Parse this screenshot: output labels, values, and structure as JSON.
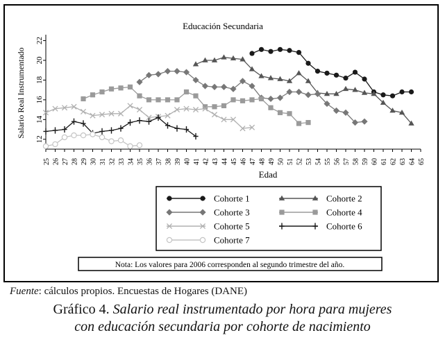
{
  "chart_data": {
    "type": "line",
    "title": "Educación Secundaria",
    "xlabel": "Edad",
    "ylabel": "Salario Real Instrumentado",
    "xlim": [
      25,
      65
    ],
    "ylim": [
      11,
      22.6
    ],
    "yticks": [
      12,
      14,
      16,
      18,
      20,
      22
    ],
    "x": [
      25,
      26,
      27,
      28,
      29,
      30,
      31,
      32,
      33,
      34,
      35,
      36,
      37,
      38,
      39,
      40,
      41,
      42,
      43,
      44,
      45,
      46,
      47,
      48,
      49,
      50,
      51,
      52,
      53,
      54,
      55,
      56,
      57,
      58,
      59,
      60,
      61,
      62,
      63,
      64,
      65
    ],
    "grid": false,
    "legend_position": "below plot, boxed",
    "series": [
      {
        "name": "Cohorte 1",
        "color": "#1a1a1a",
        "marker": "circle-filled",
        "x": [
          47,
          48,
          49,
          50,
          51,
          52,
          53,
          54,
          55,
          56,
          57,
          58,
          59,
          60,
          61,
          62,
          63,
          64
        ],
        "values": [
          20.7,
          21.1,
          20.9,
          21.1,
          21.0,
          20.8,
          19.7,
          18.9,
          18.7,
          18.5,
          18.2,
          18.8,
          18.1,
          16.8,
          16.5,
          16.4,
          16.8,
          16.8
        ]
      },
      {
        "name": "Cohorte 2",
        "color": "#555555",
        "marker": "triangle",
        "x": [
          41,
          42,
          43,
          44,
          45,
          46,
          47,
          48,
          49,
          50,
          51,
          52,
          53,
          54,
          55,
          56,
          57,
          58,
          59,
          60,
          61,
          62,
          63,
          64
        ],
        "values": [
          19.6,
          20.0,
          20.0,
          20.3,
          20.2,
          20.1,
          19.1,
          18.4,
          18.2,
          18.1,
          17.9,
          18.7,
          17.9,
          16.7,
          16.6,
          16.6,
          17.1,
          17.0,
          16.7,
          16.6,
          15.7,
          14.9,
          14.7,
          13.6
        ]
      },
      {
        "name": "Cohorte 3",
        "color": "#777777",
        "marker": "diamond",
        "x": [
          35,
          36,
          37,
          38,
          39,
          40,
          41,
          42,
          43,
          44,
          45,
          46,
          47,
          48,
          49,
          50,
          51,
          52,
          53,
          54,
          55,
          56,
          57,
          58,
          59
        ],
        "values": [
          17.8,
          18.5,
          18.6,
          18.9,
          18.9,
          18.8,
          18.0,
          17.4,
          17.3,
          17.3,
          17.1,
          17.9,
          17.4,
          16.2,
          16.1,
          16.2,
          16.8,
          16.8,
          16.5,
          16.6,
          15.6,
          14.9,
          14.7,
          13.7,
          13.8
        ]
      },
      {
        "name": "Cohorte 4",
        "color": "#9a9a9a",
        "marker": "square",
        "x": [
          29,
          30,
          31,
          32,
          33,
          34,
          35,
          36,
          37,
          38,
          39,
          40,
          41,
          42,
          43,
          44,
          45,
          46,
          47,
          48,
          49,
          50,
          51,
          52,
          53
        ],
        "values": [
          16.1,
          16.5,
          16.8,
          17.1,
          17.2,
          17.3,
          16.4,
          16.0,
          16.0,
          16.0,
          16.0,
          16.8,
          16.4,
          15.3,
          15.3,
          15.4,
          16.0,
          15.9,
          16.0,
          16.1,
          15.2,
          14.7,
          14.6,
          13.6,
          13.7
        ]
      },
      {
        "name": "Cohorte 5",
        "color": "#b0b0b0",
        "marker": "cross",
        "x": [
          25,
          26,
          27,
          28,
          29,
          30,
          31,
          32,
          33,
          34,
          35,
          36,
          37,
          38,
          39,
          40,
          41,
          42,
          43,
          44,
          45,
          46,
          47
        ],
        "values": [
          14.7,
          15.1,
          15.2,
          15.3,
          14.8,
          14.4,
          14.5,
          14.6,
          14.6,
          15.4,
          15.0,
          14.2,
          14.3,
          14.4,
          15.0,
          15.1,
          15.0,
          15.1,
          14.5,
          14.0,
          14.0,
          13.1,
          13.2
        ]
      },
      {
        "name": "Cohorte 6",
        "color": "#1a1a1a",
        "marker": "plus",
        "x": [
          25,
          26,
          27,
          28,
          29,
          30,
          31,
          32,
          33,
          34,
          35,
          36,
          37,
          38,
          39,
          40,
          41
        ],
        "values": [
          12.8,
          12.9,
          13.0,
          13.8,
          13.6,
          12.6,
          12.8,
          12.9,
          13.1,
          13.7,
          13.9,
          13.8,
          14.2,
          13.4,
          13.1,
          13.0,
          12.3
        ]
      },
      {
        "name": "Cohorte 7",
        "color": "#c4c4c4",
        "marker": "circle-open",
        "x": [
          25,
          26,
          27,
          28,
          29,
          30,
          31,
          32,
          33,
          34,
          35
        ],
        "values": [
          11.3,
          11.5,
          12.2,
          12.4,
          12.4,
          12.5,
          12.2,
          11.8,
          11.9,
          11.3,
          11.4
        ]
      }
    ],
    "note": "Nota: Los valores para 2006 corresponden al segundo trimestre del año."
  },
  "source": {
    "label": "Fuente",
    "text": ": cálculos propios. Encuestas de Hogares (DANE)"
  },
  "caption": {
    "label": "Gráfico 4. ",
    "line1": "Salario real instrumentado por hora para mujeres",
    "line2": "con educación secundaria por cohorte de nacimiento"
  }
}
